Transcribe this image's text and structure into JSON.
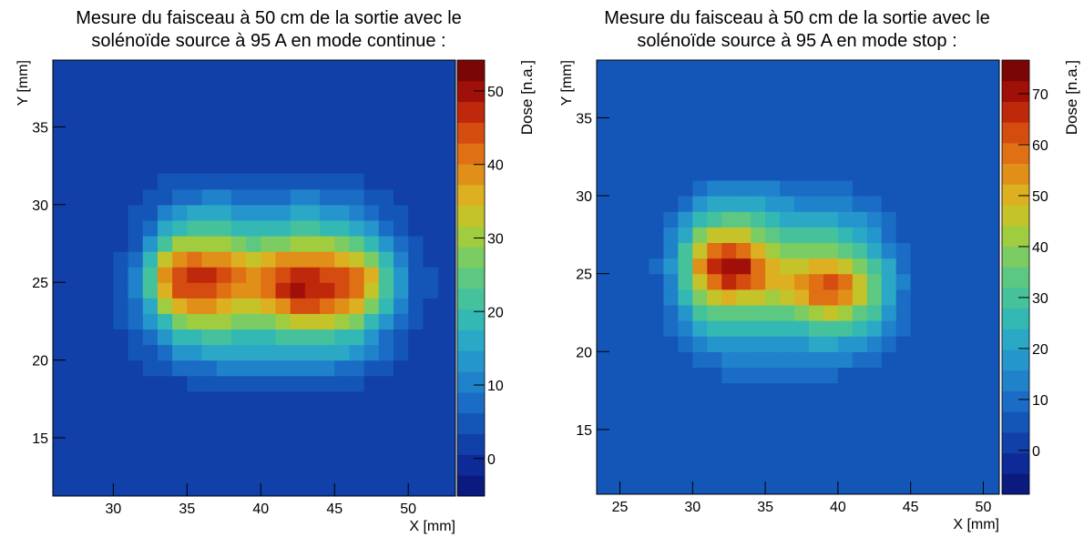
{
  "chart_data": [
    {
      "type": "heatmap",
      "title": [
        "Mesure du faisceau à 50 cm de la sortie avec le",
        "solénoïde source à 95 A en mode continue :"
      ],
      "x_label": "X [mm]",
      "y_label": "Y [mm]",
      "z_label": "Dose [n.a.]",
      "xlim": [
        25.9,
        53.2
      ],
      "ylim": [
        11.25,
        39.3
      ],
      "zlim": [
        -5.1,
        54.2
      ],
      "xticks": [
        30,
        35,
        40,
        45,
        50
      ],
      "yticks": [
        15,
        20,
        25,
        30,
        35
      ],
      "zticks": [
        0,
        10,
        20,
        30,
        40,
        50
      ],
      "palette": [
        "#0a1a7e",
        "#0d2a96",
        "#1040a8",
        "#1456b8",
        "#1a6cc4",
        "#1f82ca",
        "#2596cc",
        "#2aa8c6",
        "#33b8b4",
        "#45c29c",
        "#5cc882",
        "#7ccc64",
        "#a0cc40",
        "#c4c42a",
        "#dcb020",
        "#e09018",
        "#e07014",
        "#d44c10",
        "#c0280c",
        "#a01008",
        "#7a0606"
      ],
      "background": 3,
      "x_edges": [
        30,
        31,
        32,
        33,
        34,
        35,
        36,
        37,
        38,
        39,
        40,
        41,
        42,
        43,
        44,
        45,
        46,
        47,
        48,
        49,
        50,
        51,
        52
      ],
      "y_edges": [
        18,
        19,
        20,
        21,
        22,
        23,
        24,
        25,
        26,
        27,
        28,
        29,
        30,
        31,
        32
      ],
      "z": [
        [
          3,
          3,
          3,
          3,
          3,
          4,
          5,
          6,
          6,
          6,
          6,
          6,
          6,
          6,
          6,
          5,
          4,
          3,
          3,
          3,
          3,
          3
        ],
        [
          3,
          3,
          4,
          5,
          7,
          8,
          9,
          10,
          10,
          10,
          10,
          11,
          11,
          10,
          10,
          9,
          8,
          6,
          4,
          3,
          3,
          3
        ],
        [
          3,
          4,
          5,
          8,
          12,
          14,
          15,
          16,
          16,
          15,
          15,
          16,
          17,
          17,
          16,
          15,
          13,
          10,
          7,
          4,
          3,
          3
        ],
        [
          3,
          5,
          8,
          14,
          18,
          20,
          21,
          21,
          20,
          19,
          19,
          21,
          23,
          23,
          22,
          20,
          18,
          14,
          9,
          5,
          3,
          3
        ],
        [
          4,
          7,
          12,
          20,
          27,
          30,
          30,
          29,
          27,
          26,
          27,
          30,
          33,
          34,
          32,
          29,
          26,
          20,
          13,
          7,
          4,
          3
        ],
        [
          4,
          8,
          17,
          30,
          37,
          39,
          38,
          36,
          34,
          33,
          35,
          40,
          45,
          45,
          42,
          38,
          35,
          28,
          18,
          10,
          5,
          3
        ],
        [
          4,
          10,
          21,
          37,
          43,
          44,
          43,
          41,
          39,
          39,
          41,
          46,
          51,
          48,
          46,
          44,
          41,
          34,
          23,
          13,
          6,
          4
        ],
        [
          4,
          10,
          22,
          39,
          45,
          47,
          46,
          44,
          41,
          40,
          42,
          45,
          47,
          46,
          45,
          44,
          42,
          35,
          23,
          13,
          6,
          4
        ],
        [
          4,
          8,
          18,
          32,
          39,
          41,
          40,
          38,
          35,
          34,
          35,
          38,
          40,
          40,
          39,
          37,
          34,
          28,
          18,
          10,
          5,
          3
        ],
        [
          3,
          6,
          13,
          22,
          29,
          31,
          31,
          29,
          26,
          25,
          26,
          28,
          30,
          30,
          29,
          27,
          24,
          19,
          12,
          7,
          4,
          3
        ],
        [
          3,
          5,
          9,
          15,
          20,
          22,
          22,
          21,
          19,
          18,
          19,
          20,
          21,
          21,
          20,
          19,
          16,
          12,
          8,
          5,
          3,
          3
        ],
        [
          3,
          4,
          6,
          10,
          13,
          15,
          15,
          15,
          14,
          13,
          13,
          14,
          15,
          15,
          14,
          13,
          11,
          8,
          5,
          4,
          3,
          3
        ],
        [
          3,
          3,
          4,
          6,
          8,
          9,
          10,
          10,
          9,
          9,
          9,
          9,
          10,
          10,
          9,
          8,
          7,
          5,
          4,
          3,
          3,
          3
        ],
        [
          3,
          3,
          3,
          4,
          5,
          5,
          6,
          6,
          6,
          5,
          5,
          5,
          6,
          6,
          5,
          5,
          4,
          3,
          3,
          3,
          3,
          3
        ]
      ]
    },
    {
      "type": "heatmap",
      "title": [
        "Mesure du faisceau à 50 cm de la sortie avec le",
        "solénoïde source à 95 A en mode stop :"
      ],
      "x_label": "X [mm]",
      "y_label": "Y [mm]",
      "z_label": "Dose [n.a.]",
      "xlim": [
        23.4,
        51.1
      ],
      "ylim": [
        10.85,
        38.7
      ],
      "zlim": [
        -8.6,
        76.6
      ],
      "xticks": [
        25,
        30,
        35,
        40,
        45,
        50
      ],
      "yticks": [
        15,
        20,
        25,
        30,
        35
      ],
      "zticks": [
        0,
        10,
        20,
        30,
        40,
        50,
        60,
        70
      ],
      "palette": [
        "#0a1a7e",
        "#0d2a96",
        "#1040a8",
        "#1456b8",
        "#1a6cc4",
        "#1f82ca",
        "#2596cc",
        "#2aa8c6",
        "#33b8b4",
        "#45c29c",
        "#5cc882",
        "#7ccc64",
        "#a0cc40",
        "#c4c42a",
        "#dcb020",
        "#e09018",
        "#e07014",
        "#d44c10",
        "#c0280c",
        "#a01008",
        "#7a0606"
      ],
      "background": 4,
      "x_edges": [
        27,
        28,
        29,
        30,
        31,
        32,
        33,
        34,
        35,
        36,
        37,
        38,
        39,
        40,
        41,
        42,
        43,
        44,
        45,
        46
      ],
      "y_edges": [
        18,
        19,
        20,
        21,
        22,
        23,
        24,
        25,
        26,
        27,
        28,
        29,
        30,
        31,
        32
      ],
      "z": [
        [
          4,
          4,
          5,
          6,
          7,
          8,
          8,
          8,
          8,
          8,
          8,
          8,
          8,
          7,
          7,
          6,
          5,
          4,
          4
        ],
        [
          4,
          5,
          7,
          9,
          11,
          12,
          12,
          12,
          12,
          12,
          12,
          13,
          13,
          12,
          11,
          9,
          7,
          5,
          4
        ],
        [
          5,
          7,
          10,
          14,
          17,
          18,
          18,
          18,
          18,
          18,
          19,
          20,
          20,
          19,
          17,
          14,
          10,
          6,
          4
        ],
        [
          5,
          9,
          14,
          20,
          24,
          25,
          25,
          24,
          24,
          25,
          27,
          29,
          29,
          28,
          25,
          20,
          14,
          8,
          5
        ],
        [
          6,
          11,
          19,
          28,
          33,
          35,
          34,
          33,
          33,
          35,
          40,
          44,
          45,
          42,
          36,
          28,
          19,
          10,
          5
        ],
        [
          7,
          13,
          24,
          37,
          45,
          49,
          48,
          45,
          44,
          46,
          52,
          58,
          60,
          56,
          46,
          34,
          22,
          11,
          6
        ],
        [
          7,
          15,
          29,
          48,
          60,
          66,
          64,
          57,
          52,
          50,
          54,
          60,
          62,
          58,
          48,
          35,
          23,
          12,
          6
        ],
        [
          8,
          16,
          31,
          54,
          68,
          72,
          70,
          60,
          52,
          47,
          47,
          50,
          51,
          48,
          40,
          30,
          20,
          11,
          6
        ],
        [
          7,
          15,
          29,
          48,
          60,
          64,
          60,
          52,
          44,
          38,
          37,
          38,
          38,
          35,
          30,
          23,
          15,
          9,
          5
        ],
        [
          6,
          12,
          23,
          37,
          45,
          47,
          45,
          40,
          34,
          30,
          29,
          29,
          28,
          26,
          22,
          17,
          11,
          7,
          5
        ],
        [
          5,
          9,
          16,
          25,
          31,
          33,
          33,
          30,
          26,
          23,
          22,
          21,
          20,
          19,
          16,
          12,
          8,
          6,
          4
        ],
        [
          4,
          7,
          11,
          16,
          20,
          21,
          21,
          20,
          18,
          16,
          15,
          14,
          13,
          12,
          10,
          8,
          6,
          5,
          4
        ],
        [
          4,
          5,
          7,
          10,
          12,
          13,
          13,
          13,
          12,
          11,
          10,
          9,
          9,
          8,
          7,
          6,
          5,
          4,
          4
        ],
        [
          4,
          4,
          5,
          6,
          7,
          7,
          7,
          7,
          7,
          6,
          6,
          6,
          5,
          5,
          5,
          4,
          4,
          4,
          4
        ]
      ]
    }
  ]
}
